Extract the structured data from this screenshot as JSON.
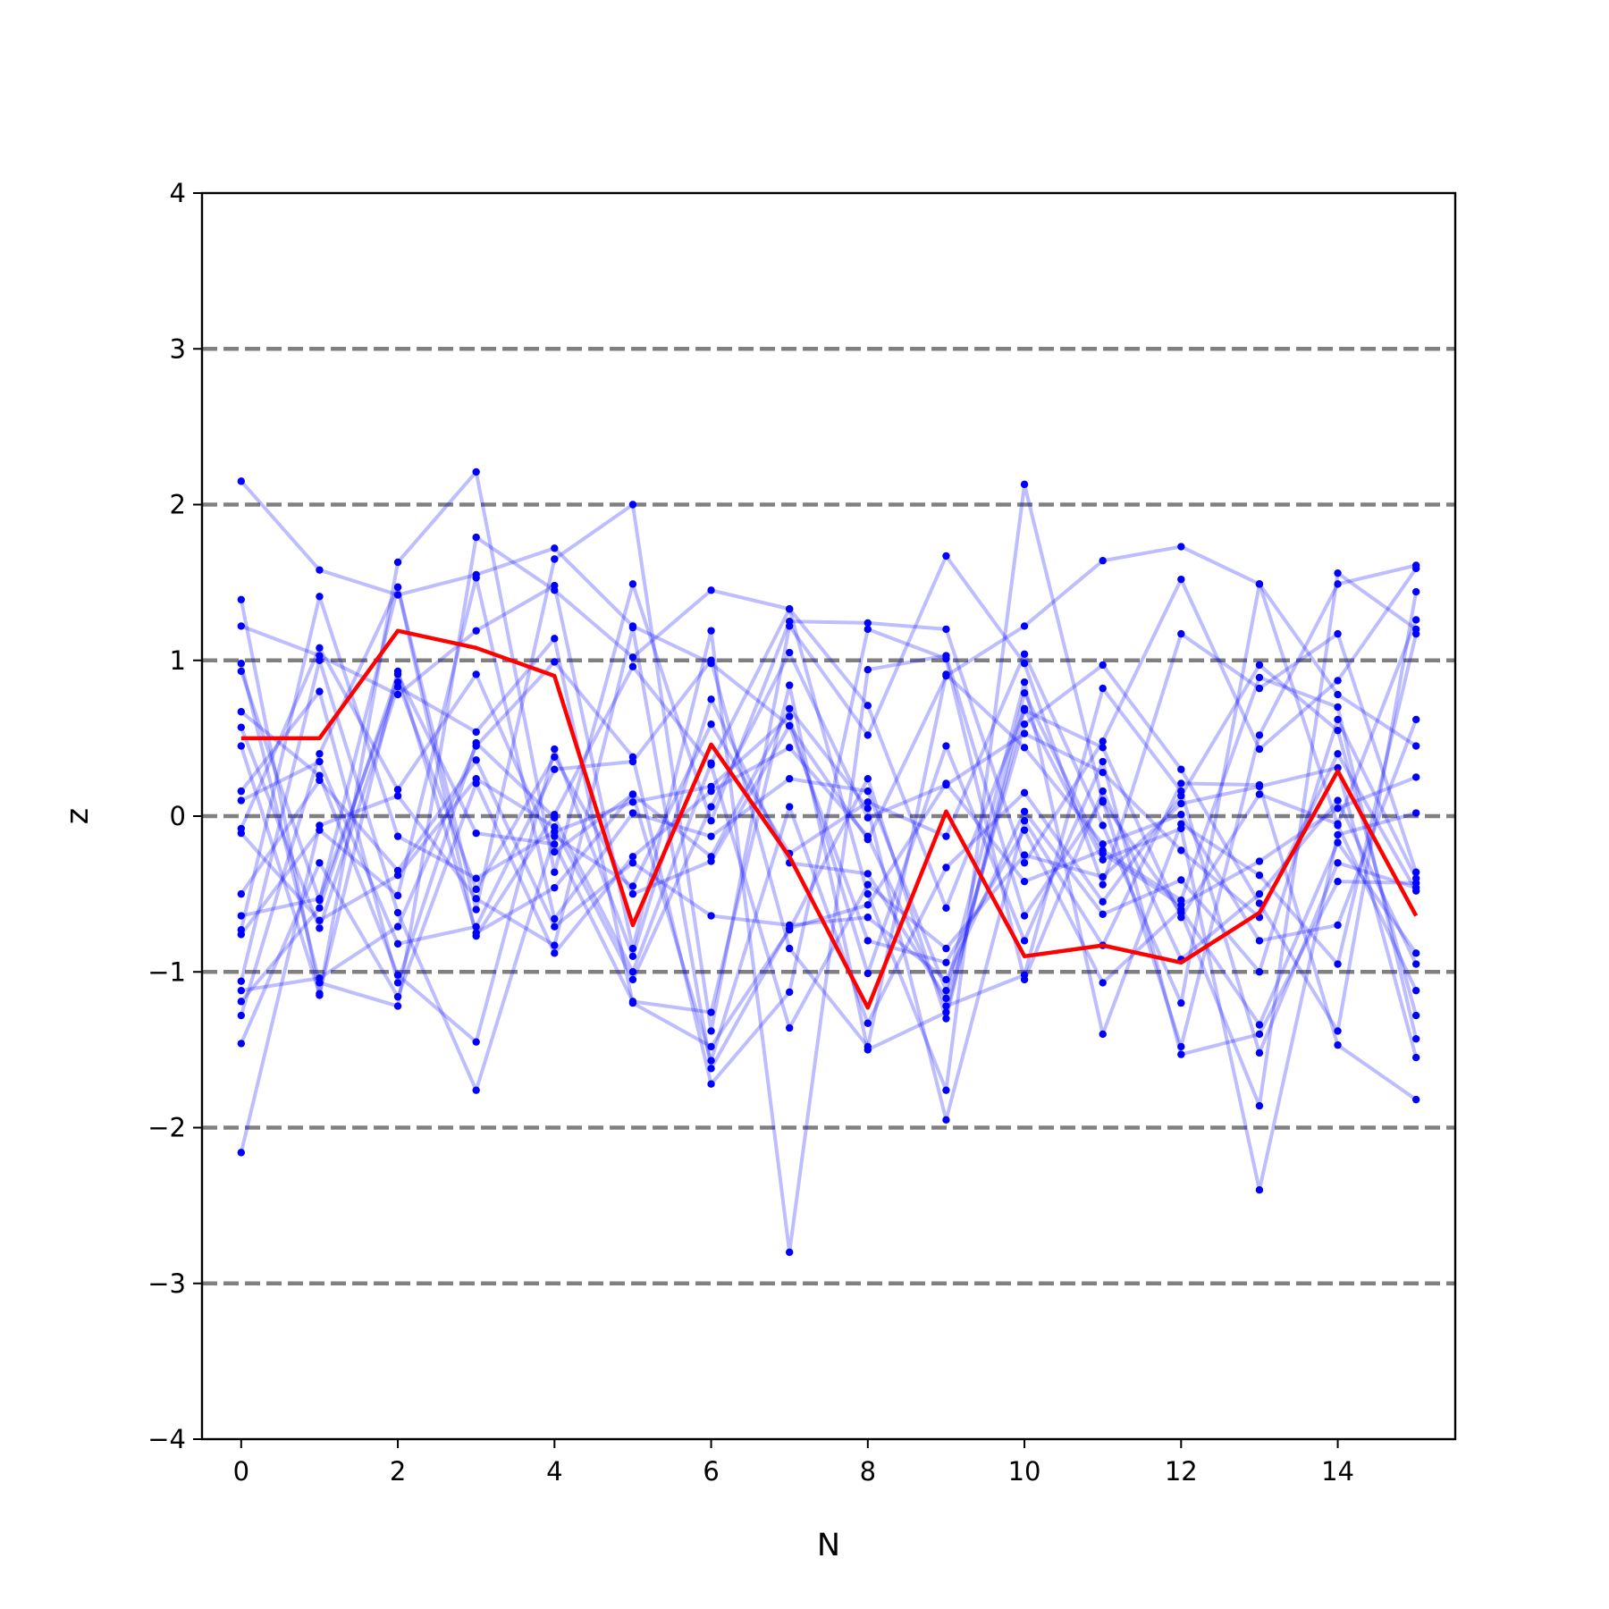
{
  "chart_data": {
    "type": "line",
    "title": "",
    "xlabel": "N",
    "ylabel": "z",
    "xlim": [
      -0.5,
      15.5
    ],
    "ylim": [
      -4,
      4
    ],
    "x_ticks": [
      0,
      2,
      4,
      6,
      8,
      10,
      12,
      14
    ],
    "x_tick_labels": [
      "0",
      "2",
      "4",
      "6",
      "8",
      "10",
      "12",
      "14"
    ],
    "y_ticks": [
      -4,
      -3,
      -2,
      -1,
      0,
      1,
      2,
      3,
      4
    ],
    "y_tick_labels": [
      "−4",
      "−3",
      "−2",
      "−1",
      "0",
      "1",
      "2",
      "3",
      "4"
    ],
    "reference_lines": [
      -3,
      -2,
      -1,
      0,
      1,
      2,
      3
    ],
    "x": [
      0,
      1,
      2,
      3,
      4,
      5,
      6,
      7,
      8,
      9,
      10,
      11,
      12,
      13,
      14,
      15
    ],
    "grid": false,
    "legend": "none",
    "colors": {
      "highlight": "#ff0000",
      "samples": "#0000ff",
      "reference": "#808080"
    },
    "highlight_series": {
      "values": [
        0.5,
        0.5,
        1.19,
        1.08,
        0.9,
        -0.7,
        0.46,
        -0.26,
        -1.23,
        0.03,
        -0.9,
        -0.83,
        -0.94,
        -0.62,
        0.29,
        -0.64
      ]
    },
    "series": [
      {
        "values": [
          2.15,
          1.58,
          1.42,
          1.55,
          1.72,
          1.22,
          0.98,
          0.58,
          -0.15,
          0.9,
          1.22,
          1.64,
          1.73,
          1.49,
          0.78,
          0.45
        ]
      },
      {
        "values": [
          1.39,
          -1.15,
          1.63,
          2.21,
          -0.36,
          1.49,
          -0.03,
          1.25,
          1.24,
          1.2,
          -0.3,
          0.48,
          1.52,
          0.43,
          0.87,
          1.59
        ]
      },
      {
        "values": [
          1.22,
          1.03,
          0.78,
          1.19,
          1.48,
          -0.85,
          1.19,
          -2.8,
          0.94,
          1.03,
          -0.64,
          0.1,
          -1.48,
          0.52,
          1.49,
          1.61
        ]
      },
      {
        "values": [
          0.98,
          -1.07,
          -1.22,
          1.79,
          1.45,
          1.02,
          1.45,
          1.33,
          -0.5,
          -1.76,
          2.13,
          0.09,
          -0.62,
          -1.86,
          1.56,
          1.2
        ]
      },
      {
        "values": [
          0.93,
          -0.54,
          1.47,
          -0.6,
          1.65,
          2.0,
          -1.38,
          1.22,
          0.52,
          1.67,
          0.98,
          -0.44,
          1.17,
          0.82,
          1.17,
          -0.36
        ]
      },
      {
        "values": [
          0.67,
          0.26,
          -1.02,
          -1.45,
          0.43,
          -0.9,
          0.75,
          -0.3,
          -0.37,
          -1.17,
          0.59,
          0.97,
          0.3,
          -0.56,
          -1.38,
          1.44
        ]
      },
      {
        "values": [
          0.57,
          -0.72,
          0.83,
          0.54,
          1.14,
          -1.2,
          -1.48,
          -0.73,
          0.24,
          -1.3,
          0.79,
          -0.24,
          -0.57,
          -0.29,
          0.05,
          0.25
        ]
      },
      {
        "values": [
          0.45,
          -1.14,
          0.93,
          -0.75,
          -0.46,
          0.14,
          -1.57,
          0.06,
          -1.33,
          -0.33,
          0.15,
          -0.55,
          0.13,
          0.97,
          0.55,
          -1.28
        ]
      },
      {
        "values": [
          0.16,
          0.8,
          -1.07,
          0.47,
          -0.01,
          -1.0,
          0.34,
          1.33,
          0.71,
          -0.59,
          0.68,
          0.44,
          -0.65,
          0.14,
          -0.05,
          1.26
        ]
      },
      {
        "values": [
          0.1,
          0.35,
          -0.82,
          -0.71,
          0.3,
          0.35,
          1.0,
          -0.85,
          -1.48,
          0.91,
          0.44,
          -0.18,
          0.01,
          -0.8,
          -0.7,
          0.62
        ]
      },
      {
        "values": [
          -0.08,
          1.08,
          0.17,
          0.91,
          -0.23,
          0.14,
          -0.26,
          0.69,
          0.05,
          -1.95,
          -0.03,
          -0.83,
          0.21,
          0.2,
          -1.47,
          -1.82
        ]
      },
      {
        "values": [
          -0.11,
          -0.67,
          -0.38,
          0.24,
          -0.07,
          -1.05,
          0.06,
          1.05,
          -0.01,
          0.2,
          0.53,
          0.28,
          -0.22,
          -0.65,
          0.4,
          -0.48
        ]
      },
      {
        "values": [
          -0.5,
          0.23,
          -0.35,
          0.36,
          -0.71,
          -0.3,
          -0.64,
          -0.7,
          -0.65,
          -1.05,
          0.03,
          -0.63,
          -0.41,
          -1.0,
          0.62,
          -0.4
        ]
      },
      {
        "values": [
          -0.64,
          -0.53,
          0.86,
          -0.47,
          0.38,
          -0.5,
          -0.29,
          0.58,
          -0.8,
          -0.94,
          -0.09,
          -1.07,
          -0.6,
          -1.34,
          -0.17,
          -0.88
        ]
      },
      {
        "values": [
          -0.73,
          1.41,
          -0.13,
          -0.4,
          -0.1,
          0.09,
          0.19,
          0.64,
          -1.01,
          0.45,
          -0.8,
          0.35,
          -1.53,
          -1.4,
          -0.42,
          -0.43
        ]
      },
      {
        "values": [
          -0.76,
          -0.09,
          -0.51,
          1.53,
          -0.66,
          0.02,
          -0.13,
          0.24,
          0.16,
          -1.12,
          0.86,
          -1.4,
          -0.05,
          -0.38,
          -0.95,
          1.17
        ]
      },
      {
        "values": [
          -1.06,
          1.0,
          -0.62,
          -1.76,
          -0.13,
          -0.45,
          0.59,
          -0.24,
          0.09,
          -0.13,
          1.04,
          -0.06,
          -1.2,
          1.49,
          -0.06,
          -1.12
        ]
      },
      {
        "values": [
          -1.12,
          -1.04,
          -0.71,
          0.45,
          0.99,
          0.38,
          -1.72,
          -1.13,
          1.2,
          1.01,
          -1.05,
          0.16,
          -0.92,
          -0.5,
          0.1,
          -0.95
        ]
      },
      {
        "values": [
          -1.19,
          -0.59,
          0.91,
          -0.11,
          -0.18,
          -1.19,
          -1.26,
          0.84,
          -1.5,
          -1.26,
          0.69,
          -0.28,
          -0.08,
          -2.4,
          -0.12,
          0.02
        ]
      },
      {
        "values": [
          -1.28,
          0.4,
          1.47,
          -0.77,
          0.01,
          0.96,
          0.33,
          -1.36,
          -0.44,
          -0.85,
          -0.25,
          -0.39,
          0.08,
          0.19,
          0.31,
          -1.55
        ]
      },
      {
        "values": [
          -1.46,
          -0.3,
          -1.16,
          0.21,
          -0.88,
          -0.26,
          0.16,
          0.44,
          -0.13,
          -1.22,
          -1.02,
          0.82,
          0.16,
          -1.52,
          -0.3,
          -0.46
        ]
      },
      {
        "values": [
          -2.16,
          -0.06,
          0.13,
          -0.53,
          -0.83,
          1.21,
          -1.62,
          -0.72,
          -0.57,
          0.21,
          -0.42,
          -0.22,
          -0.54,
          0.89,
          0.7,
          -1.43
        ]
      }
    ]
  }
}
